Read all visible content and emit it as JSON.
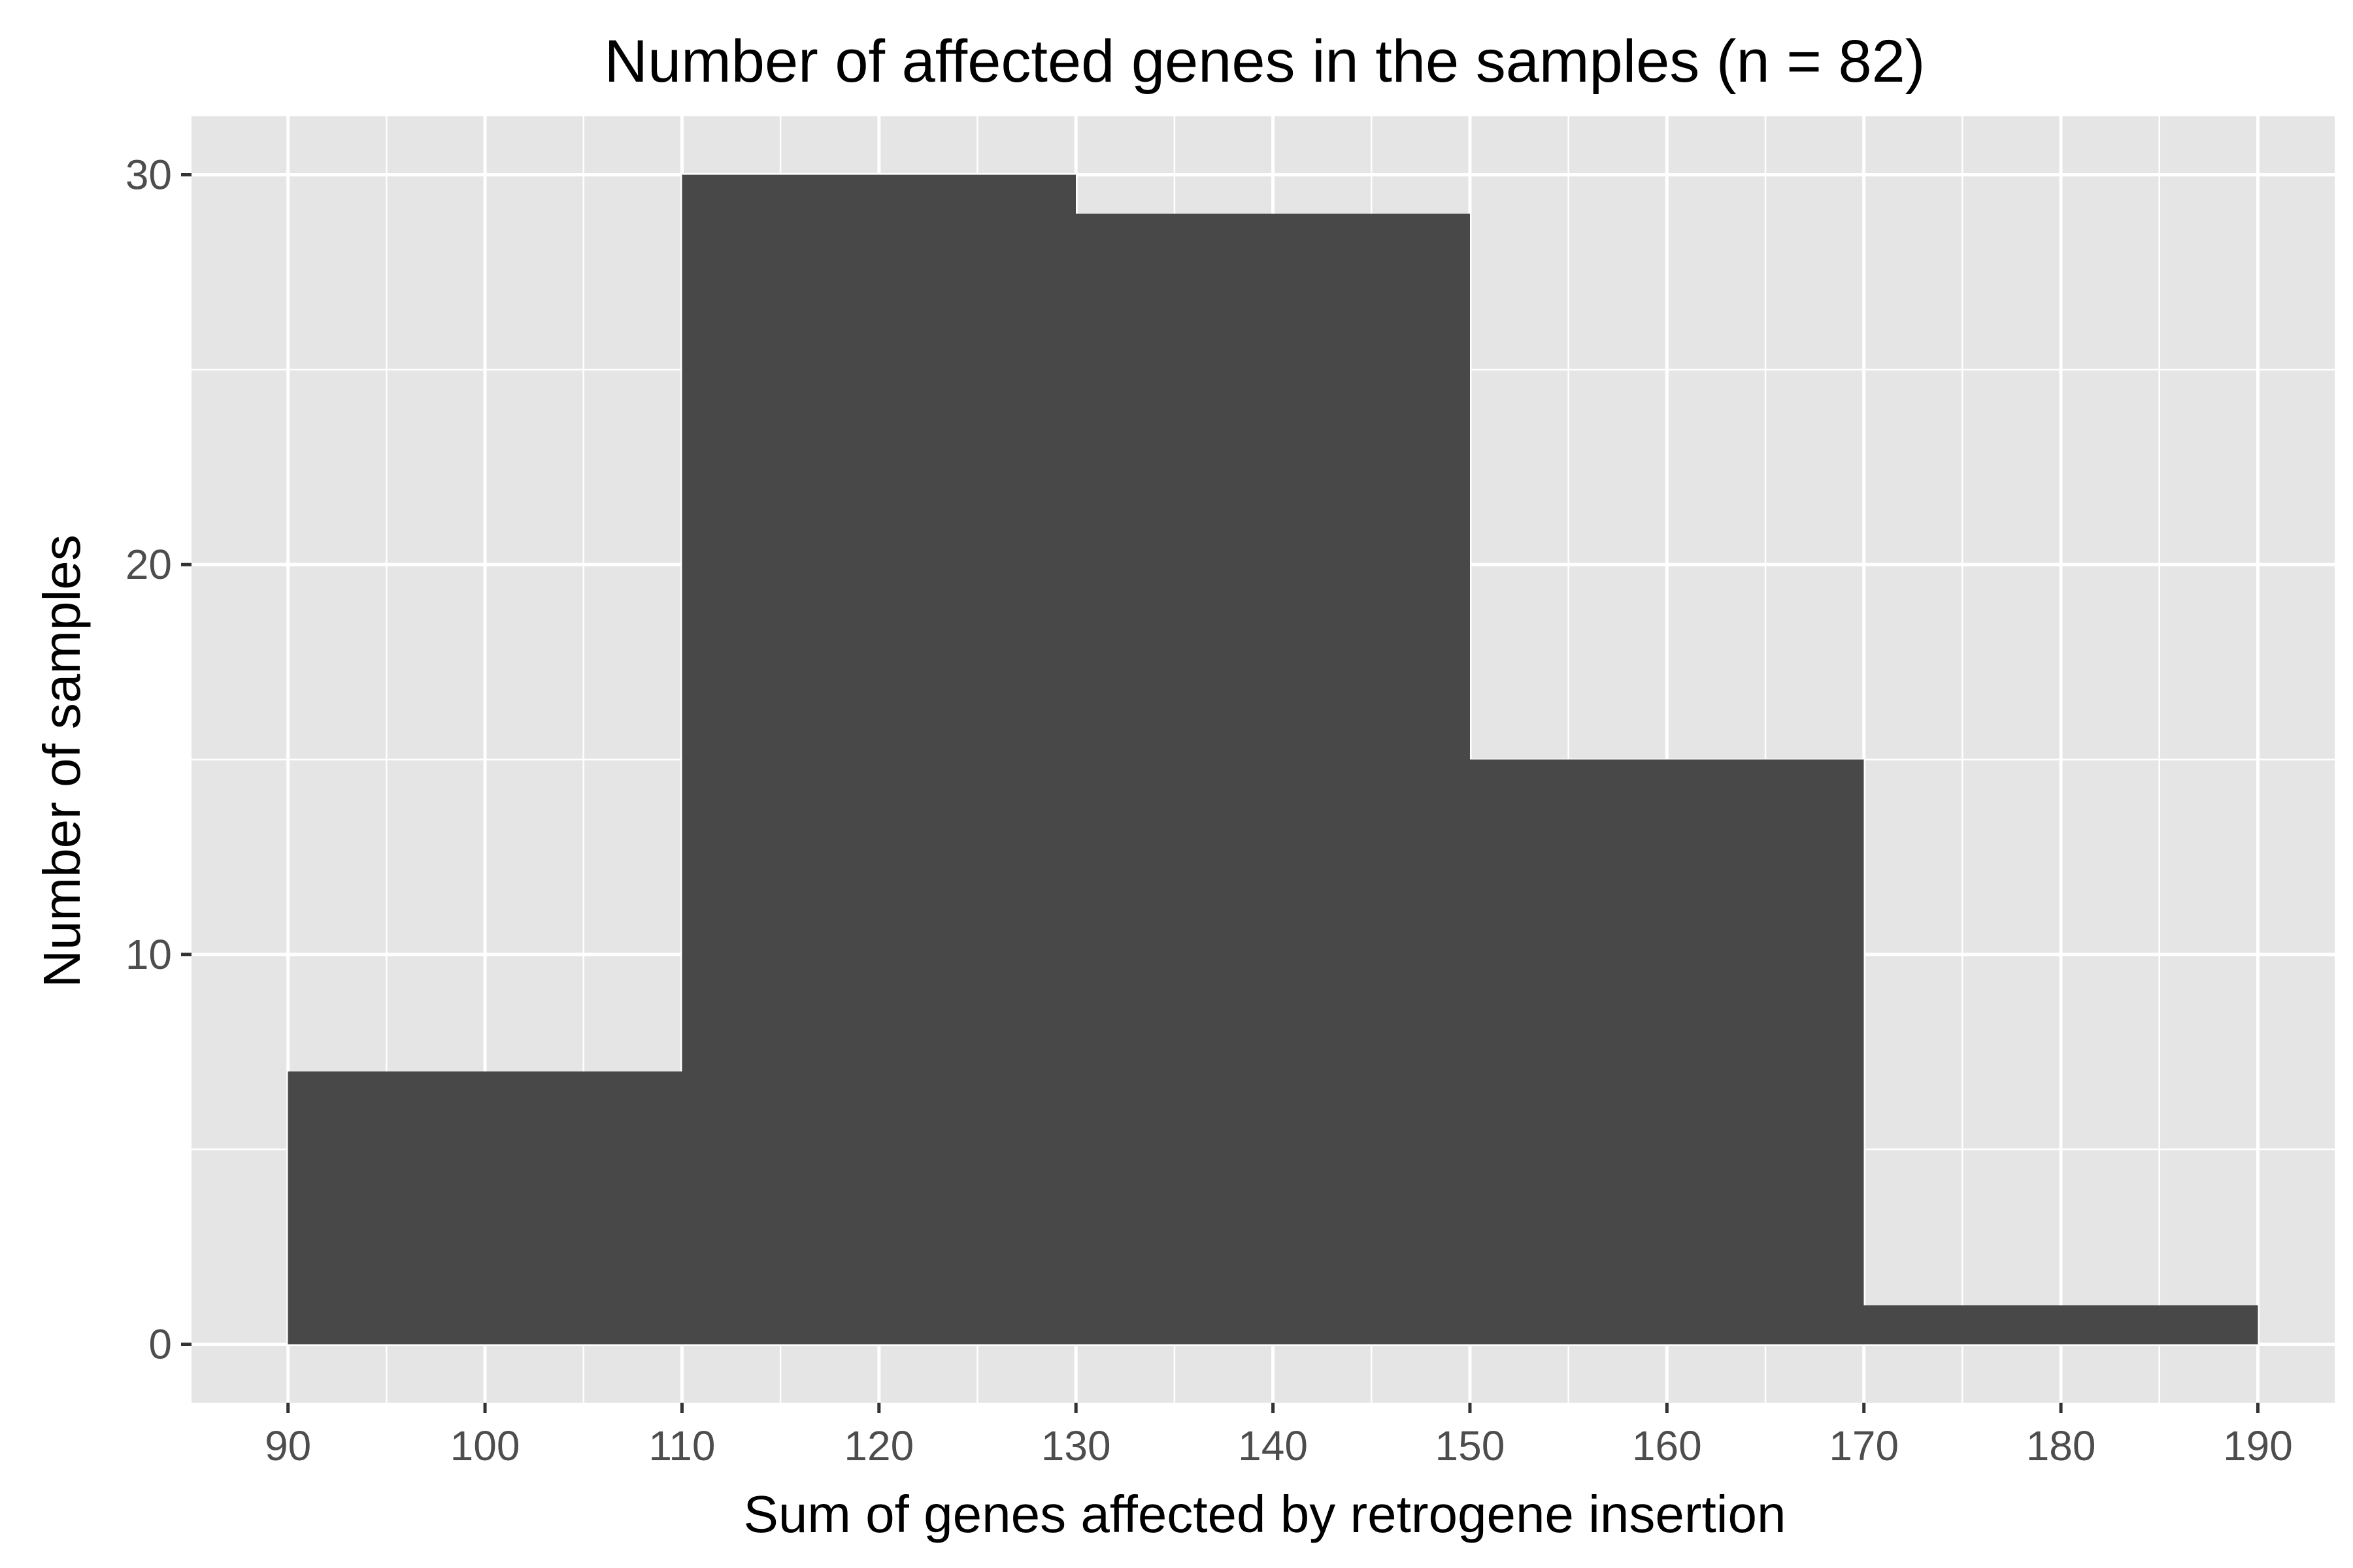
{
  "chart_data": {
    "type": "bar",
    "title": "Number of affected genes in the samples (n = 82)",
    "xlabel": "Sum of genes affected by retrogene insertion",
    "ylabel": "Number of samples",
    "bins": [
      {
        "x0": 90,
        "x1": 110,
        "count": 7
      },
      {
        "x0": 110,
        "x1": 130,
        "count": 30
      },
      {
        "x0": 130,
        "x1": 150,
        "count": 29
      },
      {
        "x0": 150,
        "x1": 170,
        "count": 15
      },
      {
        "x0": 170,
        "x1": 190,
        "count": 1
      }
    ],
    "xlim": [
      85.1,
      193.9
    ],
    "ylim": [
      -1.5,
      31.5
    ],
    "x_ticks": [
      90,
      100,
      110,
      120,
      130,
      140,
      150,
      160,
      170,
      180,
      190
    ],
    "x_tick_labels": [
      "90",
      "100",
      "110",
      "120",
      "130",
      "140",
      "150",
      "160",
      "170",
      "180",
      "190"
    ],
    "y_ticks": [
      0,
      10,
      20,
      30
    ],
    "y_tick_labels": [
      "0",
      "10",
      "20",
      "30"
    ],
    "x_minor_ticks": [
      95,
      105,
      115,
      125,
      135,
      145,
      155,
      165,
      175,
      185
    ],
    "y_minor_ticks": [
      5,
      15,
      25
    ],
    "grid": true,
    "colors": {
      "panel_background": "#e5e5e5",
      "grid_line": "#ffffff",
      "bar_fill": "#484848",
      "tick_text": "#4d4d4d",
      "tick_mark": "#333333"
    }
  }
}
